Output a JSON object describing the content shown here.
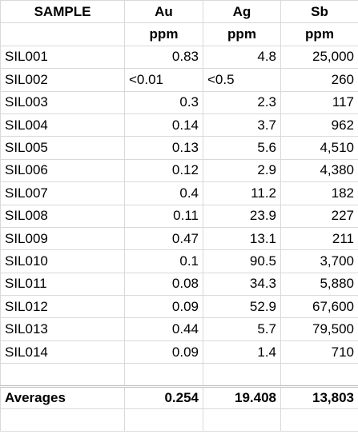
{
  "table": {
    "header": [
      "SAMPLE",
      "Au",
      "Ag",
      "Sb"
    ],
    "units": [
      "ppm",
      "ppm",
      "ppm"
    ],
    "rows": [
      [
        "SIL001",
        "0.83",
        "4.8",
        "25,000"
      ],
      [
        "SIL002",
        "<0.01",
        "<0.5",
        "260"
      ],
      [
        "SIL003",
        "0.3",
        "2.3",
        "117"
      ],
      [
        "SIL004",
        "0.14",
        "3.7",
        "962"
      ],
      [
        "SIL005",
        "0.13",
        "5.6",
        "4,510"
      ],
      [
        "SIL006",
        "0.12",
        "2.9",
        "4,380"
      ],
      [
        "SIL007",
        "0.4",
        "11.2",
        "182"
      ],
      [
        "SIL008",
        "0.11",
        "23.9",
        "227"
      ],
      [
        "SIL009",
        "0.47",
        "13.1",
        "211"
      ],
      [
        "SIL010",
        "0.1",
        "90.5",
        "3,700"
      ],
      [
        "SIL011",
        "0.08",
        "34.3",
        "5,880"
      ],
      [
        "SIL012",
        "0.09",
        "52.9",
        "67,600"
      ],
      [
        "SIL013",
        "0.44",
        "5.7",
        "79,500"
      ],
      [
        "SIL014",
        "0.09",
        "1.4",
        "710"
      ]
    ],
    "averages": {
      "label": "Averages",
      "values": [
        "0.254",
        "19.408",
        "13,803"
      ]
    }
  }
}
